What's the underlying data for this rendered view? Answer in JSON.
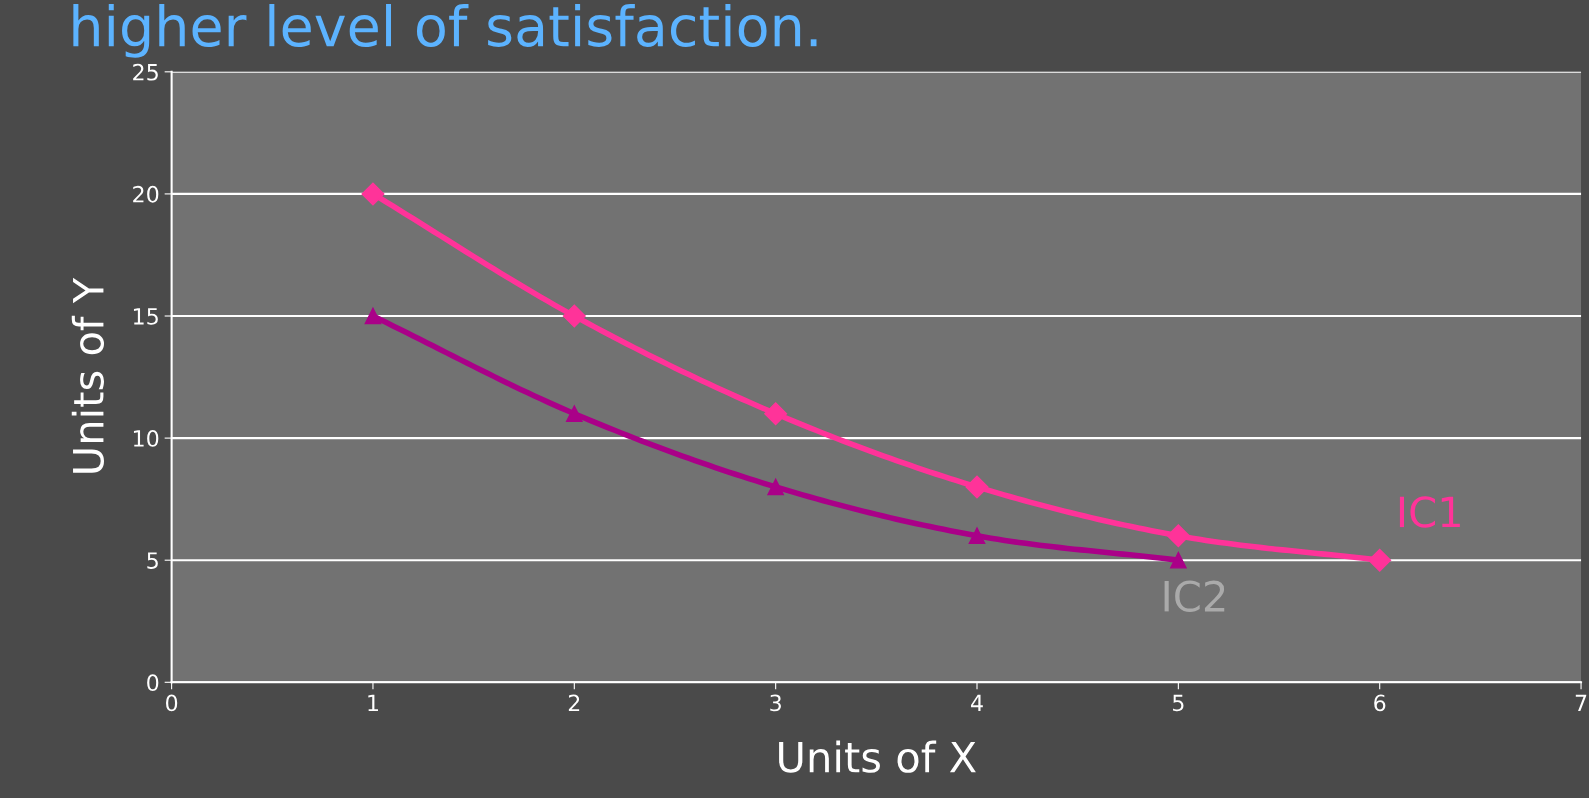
{
  "chart_data": {
    "type": "line",
    "title": "higher level of satisfaction.",
    "xlabel": "Units of X",
    "ylabel": "Units of Y",
    "series": [
      {
        "name": "IC1",
        "color": "#ff3399",
        "marker": "diamond",
        "x": [
          1,
          2,
          3,
          4,
          5,
          6
        ],
        "values": [
          20,
          15,
          11,
          8,
          6,
          5
        ]
      },
      {
        "name": "IC2",
        "color": "#aa0088",
        "marker": "triangle",
        "x": [
          1,
          2,
          3,
          4,
          5
        ],
        "values": [
          15,
          11,
          8,
          6,
          5
        ]
      }
    ],
    "xlim": [
      0,
      7
    ],
    "xticks": [
      0,
      1,
      2,
      3,
      4,
      5,
      6,
      7
    ],
    "ylim": [
      0,
      25
    ],
    "yticks": [
      0,
      5,
      10,
      15,
      20,
      25
    ],
    "grid": "y",
    "legend": false,
    "line_style": "solid"
  }
}
